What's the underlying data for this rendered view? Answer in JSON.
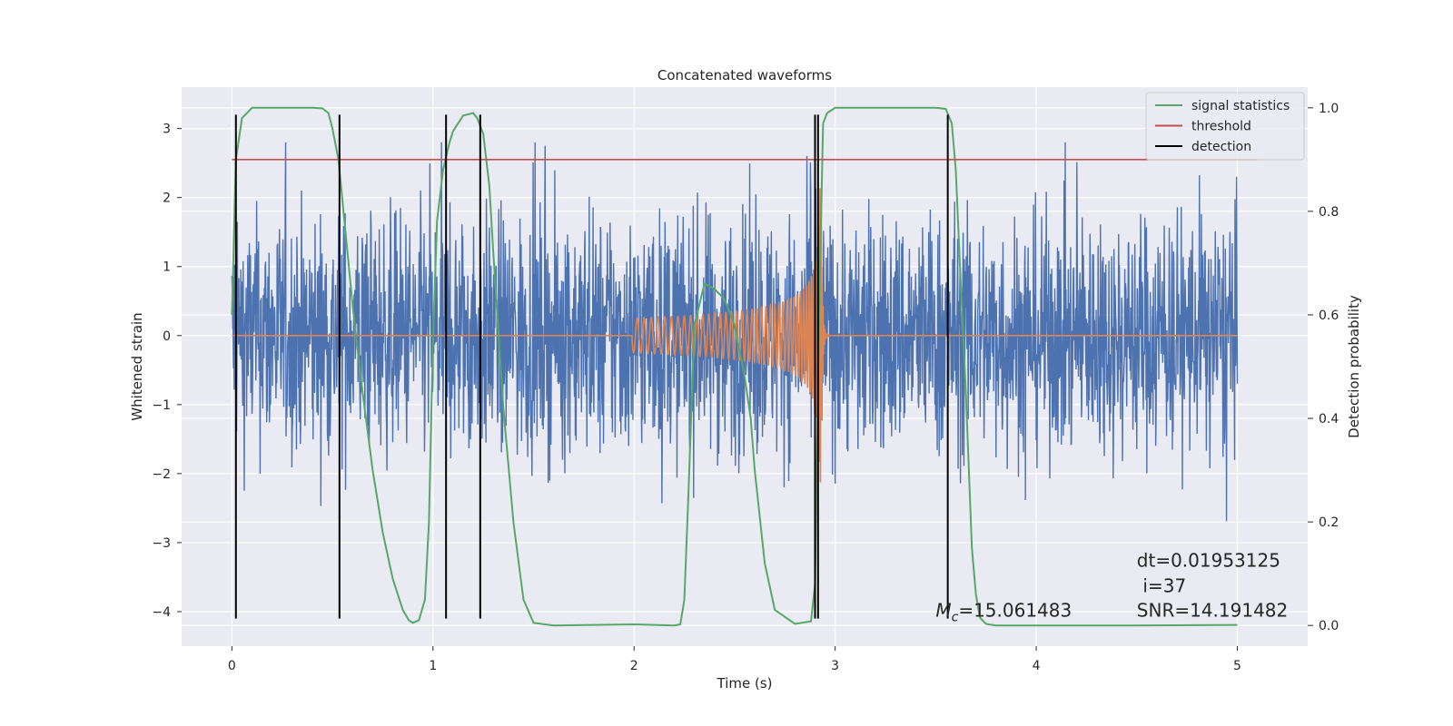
{
  "chart_data": {
    "type": "line",
    "title": "Concatenated waveforms",
    "xlabel": "Time (s)",
    "ylabel_left": "Whitened strain",
    "ylabel_right": "Detection probability",
    "xlim": [
      -0.25,
      5.35
    ],
    "ylim_left": [
      -4.5,
      3.6
    ],
    "ylim_right": [
      -0.04,
      1.04
    ],
    "x_ticks": [
      0,
      1,
      2,
      3,
      4,
      5
    ],
    "y_ticks_left": [
      -4,
      -3,
      -2,
      -1,
      0,
      1,
      2,
      3
    ],
    "y_ticks_right": [
      0.0,
      0.2,
      0.4,
      0.6,
      0.8,
      1.0
    ],
    "x_tick_labels": [
      "0",
      "1",
      "2",
      "3",
      "4",
      "5"
    ],
    "y_tick_labels_left": [
      "−4",
      "−3",
      "−2",
      "−1",
      "0",
      "1",
      "2",
      "3"
    ],
    "y_tick_labels_right": [
      "0.0",
      "0.2",
      "0.4",
      "0.6",
      "0.8",
      "1.0"
    ],
    "grid": true,
    "legend_position": "top-right",
    "colors": {
      "noise": "#4c72b0",
      "template": "#dd8452",
      "signal_statistics": "#55a868",
      "threshold": "#c44e52",
      "detection": "#000000",
      "axes_bg": "#eaeaf2",
      "grid": "#ffffff"
    },
    "noise": {
      "x_range": [
        0,
        5
      ],
      "approx_range": [
        -3.5,
        2.8
      ],
      "description_rendered_as": "dense noise"
    },
    "template": {
      "x_start": 1.99,
      "x_peak": 2.93,
      "peak_amplitude": 2.3,
      "start_amplitude": 0.25
    },
    "series": [
      {
        "name": "signal statistics",
        "axis": "right",
        "x": [
          0.0,
          0.02,
          0.05,
          0.1,
          0.2,
          0.3,
          0.4,
          0.45,
          0.48,
          0.5,
          0.53,
          0.56,
          0.6,
          0.65,
          0.7,
          0.75,
          0.8,
          0.85,
          0.88,
          0.9,
          0.93,
          0.96,
          0.98,
          1.0,
          1.02,
          1.05,
          1.08,
          1.1,
          1.15,
          1.2,
          1.22,
          1.25,
          1.28,
          1.3,
          1.35,
          1.4,
          1.45,
          1.5,
          1.6,
          2.0,
          2.1,
          2.2,
          2.23,
          2.25,
          2.27,
          2.3,
          2.35,
          2.4,
          2.45,
          2.5,
          2.55,
          2.58,
          2.6,
          2.65,
          2.7,
          2.8,
          2.88,
          2.9,
          2.92,
          2.94,
          2.96,
          3.0,
          3.3,
          3.5,
          3.55,
          3.58,
          3.6,
          3.62,
          3.65,
          3.68,
          3.7,
          3.72,
          3.75,
          3.8,
          4.0,
          4.5,
          5.0
        ],
        "values": [
          0.6,
          0.9,
          0.98,
          1.0,
          1.0,
          1.0,
          1.0,
          0.999,
          0.99,
          0.96,
          0.9,
          0.78,
          0.62,
          0.45,
          0.3,
          0.18,
          0.09,
          0.03,
          0.01,
          0.005,
          0.01,
          0.05,
          0.2,
          0.55,
          0.78,
          0.88,
          0.93,
          0.955,
          0.985,
          0.99,
          0.98,
          0.95,
          0.85,
          0.72,
          0.42,
          0.2,
          0.05,
          0.005,
          0.0,
          0.002,
          0.001,
          0.0,
          0.002,
          0.05,
          0.25,
          0.58,
          0.66,
          0.65,
          0.63,
          0.58,
          0.48,
          0.4,
          0.3,
          0.12,
          0.03,
          0.003,
          0.008,
          0.08,
          0.6,
          0.97,
          0.99,
          1.0,
          1.0,
          1.0,
          0.998,
          0.97,
          0.88,
          0.7,
          0.45,
          0.15,
          0.06,
          0.015,
          0.003,
          0.0,
          0.0,
          0.0,
          0.001
        ]
      },
      {
        "name": "threshold",
        "axis": "right",
        "x": [
          0,
          5.1
        ],
        "values": [
          0.9,
          0.9
        ]
      },
      {
        "name": "detection",
        "axis": "left",
        "type": "vlines",
        "x": [
          0.02,
          0.535,
          1.065,
          1.235,
          2.9,
          2.915,
          3.56
        ],
        "y_min": -4.1,
        "y_max": 3.2
      }
    ],
    "annotations": [
      {
        "text": "dt=0.01953125",
        "x": 4.5,
        "y": -3.35,
        "axis": "left"
      },
      {
        "text": "i=37",
        "x": 4.53,
        "y": -3.72,
        "axis": "left"
      },
      {
        "text": "SNR=14.191482",
        "x": 4.5,
        "y": -4.07,
        "axis": "left"
      },
      {
        "text": "=15.061483",
        "prefix_symbol": "M",
        "prefix_sub": "c",
        "x": 3.5,
        "y": -4.07,
        "axis": "left"
      }
    ]
  }
}
